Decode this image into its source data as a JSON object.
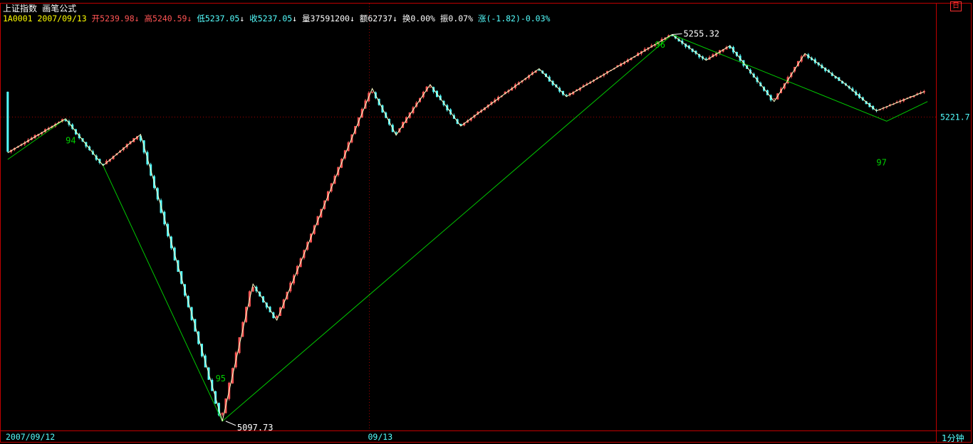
{
  "header": {
    "index_name": "上证指数",
    "formula_name": "画笔公式",
    "code": "1A0001",
    "date": "2007/09/13",
    "open": {
      "label": "开",
      "value": "5239.98",
      "arrow": "↓"
    },
    "high": {
      "label": "高",
      "value": "5240.59",
      "arrow": "↓"
    },
    "low": {
      "label": "低",
      "value": "5237.05",
      "arrow": "↓"
    },
    "close": {
      "label": "收",
      "value": "5237.05",
      "arrow": "↓"
    },
    "volume": {
      "label": "量",
      "value": "37591200",
      "arrow": "↓"
    },
    "amount": {
      "label": "额",
      "value": "62737",
      "arrow": "↓"
    },
    "turnover": {
      "label": "换",
      "value": "0.00%"
    },
    "amplitude": {
      "label": "振",
      "value": "0.07%"
    },
    "change": {
      "label": "涨",
      "value": "(-1.82)-0.03%"
    }
  },
  "restore_icon": "restore-window-icon",
  "period_label": "1分钟",
  "colors": {
    "up": "#ff5454",
    "down": "#54ffff",
    "stroke": "#ffffc8",
    "segment": "#00c800",
    "grid": "#a00000",
    "frame": "#c00000",
    "label_green": "#00d000"
  },
  "chart_data": {
    "type": "candlestick",
    "title": "上证指数 1分钟",
    "ylim": [
      5094.5,
      5266.5
    ],
    "last_price": 5221.7,
    "last_price_label": "5221.7",
    "x_labels": [
      {
        "text": "2007/09/12",
        "index": 0
      },
      {
        "text": "09/13",
        "index": 106
      }
    ],
    "extreme_labels": [
      {
        "text": "5255.32",
        "index": 195,
        "price": 5255.32
      },
      {
        "text": "5097.73",
        "index": 64,
        "price": 5097.73
      }
    ],
    "stroke_pivots": [
      [
        0,
        5207.1
      ],
      [
        17,
        5221.0
      ],
      [
        28,
        5201.9
      ],
      [
        39,
        5214.6
      ],
      [
        63,
        5097.7
      ],
      [
        72,
        5153.6
      ],
      [
        79,
        5138.9
      ],
      [
        107,
        5233.3
      ],
      [
        114,
        5214.3
      ],
      [
        124,
        5234.9
      ],
      [
        133,
        5218.0
      ],
      [
        156,
        5241.4
      ],
      [
        164,
        5230.0
      ],
      [
        195,
        5255.3
      ],
      [
        205,
        5244.8
      ],
      [
        212,
        5250.8
      ],
      [
        225,
        5228.0
      ],
      [
        234,
        5247.6
      ],
      [
        246,
        5235.0
      ],
      [
        255,
        5224.2
      ],
      [
        269,
        5232.0
      ]
    ],
    "segment_pivots": [
      [
        0,
        5204.4
      ],
      [
        17,
        5221.0
      ],
      [
        28,
        5201.9
      ],
      [
        63,
        5097.7
      ],
      [
        195,
        5255.3
      ],
      [
        258,
        5220.0
      ],
      [
        270,
        5228.0
      ]
    ],
    "segment_numbers": [
      {
        "text": "94",
        "index": 17,
        "price": 5211.0
      },
      {
        "text": "95",
        "index": 61,
        "price": 5114.0
      },
      {
        "text": "96",
        "index": 190,
        "price": 5250.0
      },
      {
        "text": "97",
        "index": 255,
        "price": 5202.0
      }
    ],
    "xlim": [
      -0.8,
      270.8
    ],
    "volatility_seed": 7
  }
}
